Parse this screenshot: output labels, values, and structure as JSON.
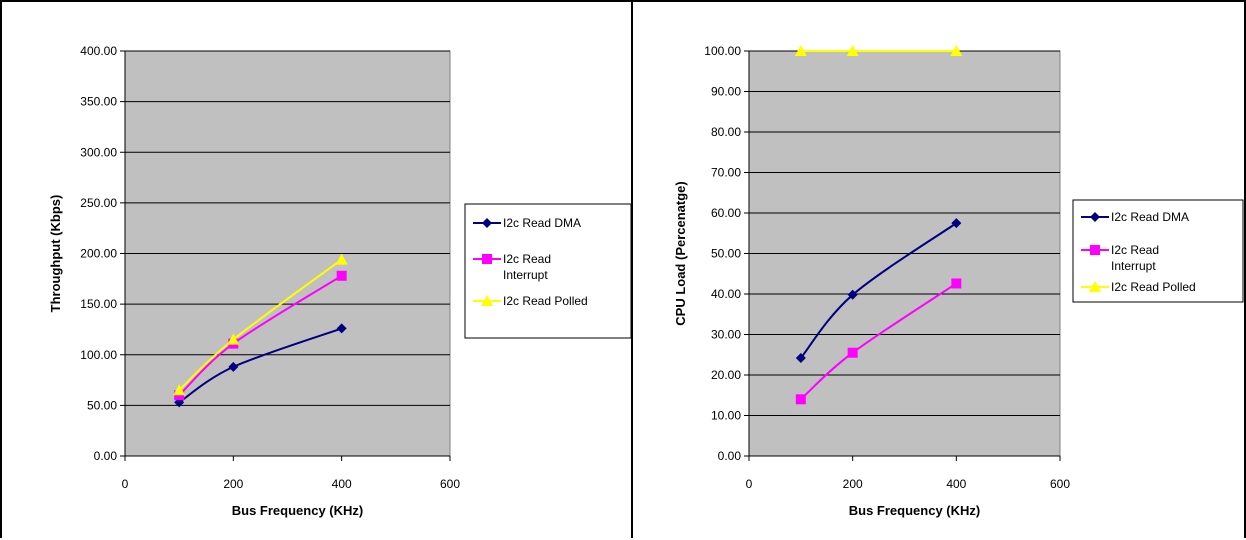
{
  "chart_data": [
    {
      "type": "line",
      "xlabel": "Bus Frequency (KHz)",
      "ylabel": "Throughput (Kbps)",
      "xlim": [
        0,
        600
      ],
      "ylim": [
        0,
        400
      ],
      "x_ticks": [
        "0",
        "200",
        "400",
        "600"
      ],
      "y_ticks": [
        "0.00",
        "50.00",
        "100.00",
        "150.00",
        "200.00",
        "250.00",
        "300.00",
        "350.00",
        "400.00"
      ],
      "grid": true,
      "legend_position": "right",
      "series": [
        {
          "name": "I2c Read DMA",
          "color": "#000080",
          "marker": "diamond",
          "x": [
            100,
            200,
            400
          ],
          "values": [
            53,
            88,
            126
          ]
        },
        {
          "name": "I2c Read Interrupt",
          "color": "#ff00ff",
          "marker": "square",
          "x": [
            100,
            200,
            400
          ],
          "values": [
            60,
            111,
            178
          ]
        },
        {
          "name": "I2c Read Polled",
          "color": "#ffff00",
          "marker": "triangle",
          "x": [
            100,
            200,
            400
          ],
          "values": [
            65,
            115,
            194
          ]
        }
      ]
    },
    {
      "type": "line",
      "xlabel": "Bus Frequency (KHz)",
      "ylabel": "CPU Load (Percenatge)",
      "xlim": [
        0,
        600
      ],
      "ylim": [
        0,
        100
      ],
      "x_ticks": [
        "0",
        "200",
        "400",
        "600"
      ],
      "y_ticks": [
        "0.00",
        "10.00",
        "20.00",
        "30.00",
        "40.00",
        "50.00",
        "60.00",
        "70.00",
        "80.00",
        "90.00",
        "100.00"
      ],
      "grid": true,
      "legend_position": "right",
      "series": [
        {
          "name": "I2c Read DMA",
          "color": "#000080",
          "marker": "diamond",
          "x": [
            100,
            200,
            400
          ],
          "values": [
            24.2,
            39.8,
            57.5
          ]
        },
        {
          "name": "I2c Read Interrupt",
          "color": "#ff00ff",
          "marker": "square",
          "x": [
            100,
            200,
            400
          ],
          "values": [
            14.0,
            25.5,
            42.6
          ]
        },
        {
          "name": "I2c Read Polled",
          "color": "#ffff00",
          "marker": "triangle",
          "x": [
            100,
            200,
            400
          ],
          "values": [
            100,
            100,
            100
          ]
        }
      ]
    }
  ]
}
